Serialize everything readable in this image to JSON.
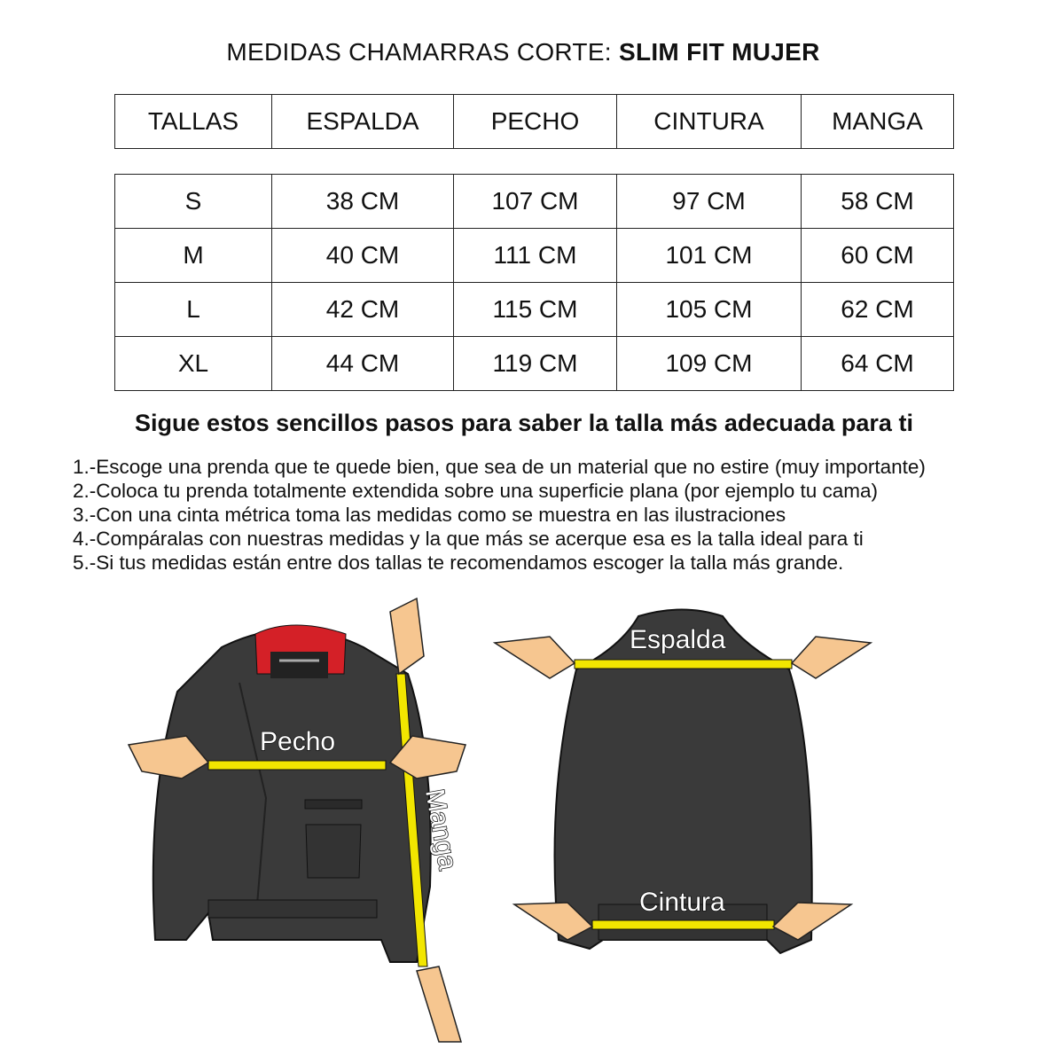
{
  "title": {
    "prefix": "MEDIDAS CHAMARRAS CORTE: ",
    "bold": "SLIM FIT MUJER"
  },
  "table": {
    "headers": [
      "TALLAS",
      "ESPALDA",
      "PECHO",
      "CINTURA",
      "MANGA"
    ],
    "rows": [
      [
        "S",
        "38 CM",
        "107 CM",
        "97 CM",
        "58 CM"
      ],
      [
        "M",
        "40 CM",
        "111 CM",
        "101 CM",
        "60 CM"
      ],
      [
        "L",
        "42 CM",
        "115 CM",
        "105 CM",
        "62 CM"
      ],
      [
        "XL",
        "44 CM",
        "119 CM",
        "109 CM",
        "64 CM"
      ]
    ]
  },
  "subtitle": "Sigue estos sencillos pasos para saber la talla más adecuada para ti",
  "steps": [
    "1.-Escoge una prenda que te quede bien, que sea de un material que no estire (muy importante)",
    "2.-Coloca tu prenda totalmente extendida sobre una superficie plana (por ejemplo tu cama)",
    "3.-Con una cinta métrica toma las medidas como se muestra en las ilustraciones",
    "4.-Compáralas con nuestras medidas y la que más se acerque esa es la talla ideal para ti",
    "5.-Si tus medidas están entre dos tallas te recomendamos escoger la talla más grande."
  ],
  "illustration": {
    "pecho": "Pecho",
    "manga": "Manga",
    "espalda": "Espalda",
    "cintura": "Cintura"
  },
  "colors": {
    "jacket": "#3a3a3a",
    "tape": "#f2e600",
    "collar": "#d42027",
    "skin": "#f6c690"
  }
}
